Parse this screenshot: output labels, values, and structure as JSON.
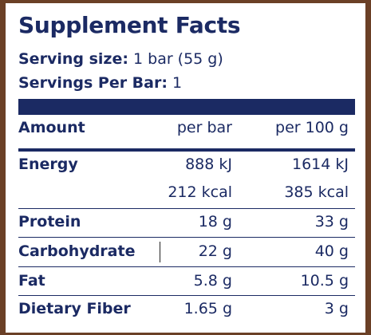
{
  "panel": {
    "title": "Supplement Facts",
    "serving_size_label": "Serving size:",
    "serving_size_value": "1 bar (55 g)",
    "servings_label": "Servings Per Bar:",
    "servings_value": "1"
  },
  "table": {
    "headers": {
      "amount": "Amount",
      "per_bar": "per bar",
      "per_100g": "per 100 g"
    },
    "rows": [
      {
        "label": "Energy",
        "per_bar": "888 kJ",
        "per_100g": "1614 kJ"
      },
      {
        "label": "",
        "per_bar": "212 kcal",
        "per_100g": "385 kcal"
      },
      {
        "label": "Protein",
        "per_bar": "18 g",
        "per_100g": "33 g"
      },
      {
        "label": "Carbohydrate",
        "per_bar": "22 g",
        "per_100g": "40 g"
      },
      {
        "label": "Fat",
        "per_bar": "5.8 g",
        "per_100g": "10.5 g"
      },
      {
        "label": "Dietary Fiber",
        "per_bar": "1.65 g",
        "per_100g": "3 g"
      }
    ]
  },
  "colors": {
    "text": "#1b2a63",
    "border": "#6b4026",
    "background": "#ffffff"
  }
}
